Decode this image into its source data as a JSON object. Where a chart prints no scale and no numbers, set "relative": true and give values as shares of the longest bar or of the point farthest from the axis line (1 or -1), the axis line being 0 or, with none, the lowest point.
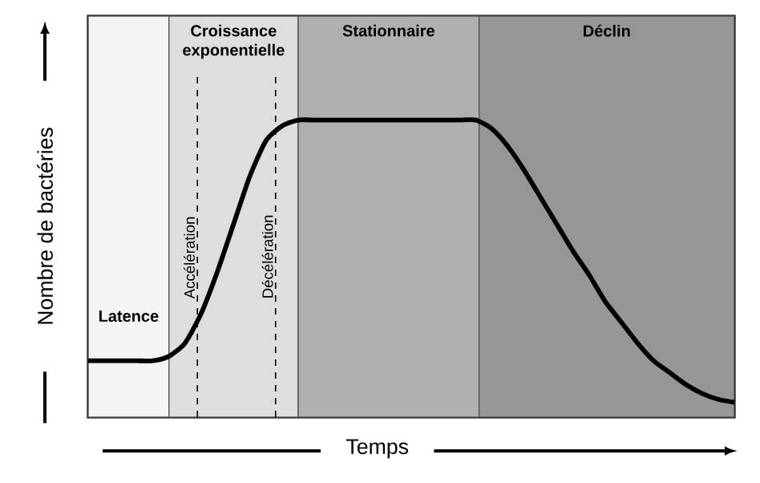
{
  "chart_data": {
    "type": "line",
    "relative": true,
    "xlabel": "Temps",
    "ylabel": "Nombre de bactéries",
    "categories": [
      null,
      null,
      null,
      null,
      null,
      null,
      null,
      null,
      null,
      null,
      null,
      null,
      null,
      null,
      null,
      null,
      null,
      null,
      null,
      null,
      null,
      null,
      null,
      null,
      null,
      null,
      null,
      null,
      null,
      null,
      null,
      null,
      null,
      null,
      null,
      null,
      null,
      null,
      null,
      null,
      null
    ],
    "series": [
      {
        "color": "#000000",
        "values": [
          0.19,
          0.19,
          0.19,
          0.19,
          0.19,
          0.205,
          0.25,
          0.35,
          0.49,
          0.65,
          0.81,
          0.93,
          0.98,
          1,
          1,
          1,
          1,
          1,
          1,
          1,
          1,
          1,
          1,
          1,
          1,
          0.97,
          0.91,
          0.83,
          0.74,
          0.65,
          0.56,
          0.48,
          0.39,
          0.32,
          0.25,
          0.19,
          0.15,
          0.11,
          0.08,
          0.06,
          0.05
        ]
      }
    ],
    "annotations": [
      "Latence",
      "Croissance exponentielle",
      "Stationnaire",
      "Déclin",
      "Accélération",
      "Décélération"
    ]
  }
}
